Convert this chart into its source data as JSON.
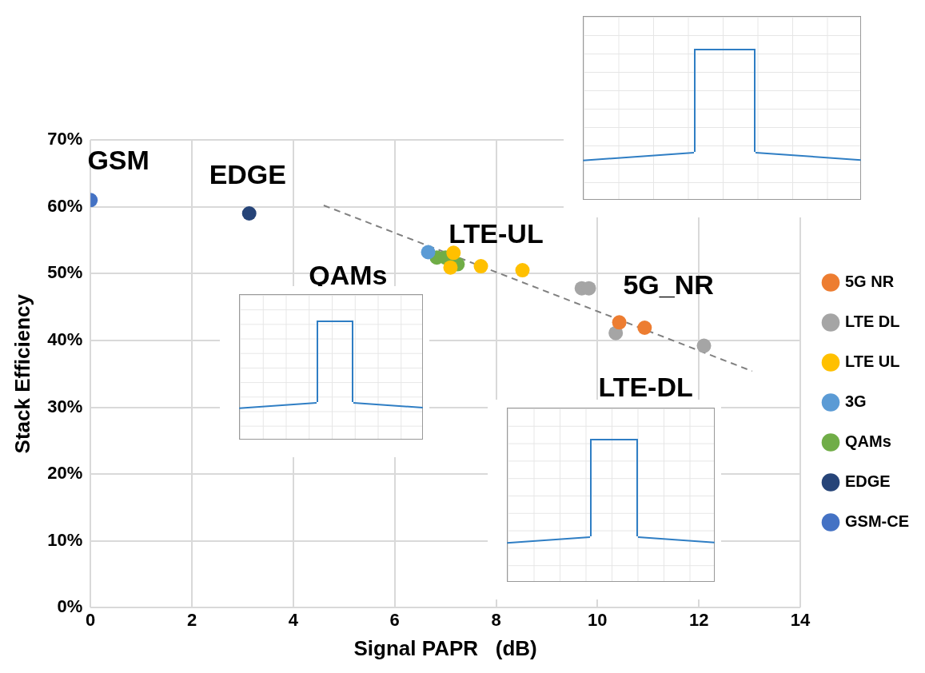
{
  "chart_data": {
    "type": "scatter",
    "xlabel": "Signal PAPR   (dB)",
    "ylabel": "Stack Efficiency",
    "xlim": [
      0,
      14
    ],
    "xticks": [
      0,
      2,
      4,
      6,
      8,
      10,
      12,
      14
    ],
    "ylim": [
      0,
      70
    ],
    "yticks": [
      {
        "value": 0,
        "label": "0%"
      },
      {
        "value": 10,
        "label": "10%"
      },
      {
        "value": 20,
        "label": "20%"
      },
      {
        "value": 30,
        "label": "30%"
      },
      {
        "value": 40,
        "label": "40%"
      },
      {
        "value": 50,
        "label": "50%"
      },
      {
        "value": 60,
        "label": "60%"
      },
      {
        "value": 70,
        "label": "70%"
      }
    ],
    "grid": true,
    "legend": "right",
    "marker": "circle",
    "series": [
      {
        "name": "5G NR",
        "color": "#ed7d31",
        "x": [
          10.43,
          10.93
        ],
        "values": [
          42.7,
          41.9
        ]
      },
      {
        "name": "LTE DL",
        "color": "#a5a5a5",
        "x": [
          9.69,
          9.83,
          10.36,
          12.1
        ],
        "values": [
          47.8,
          47.8,
          41.1,
          39.2
        ]
      },
      {
        "name": "LTE UL",
        "color": "#ffc000",
        "x": [
          7.16,
          7.1,
          7.7,
          8.52
        ],
        "values": [
          53.1,
          50.9,
          51.1,
          50.5
        ]
      },
      {
        "name": "3G",
        "color": "#5b9bd5",
        "x": [
          6.66
        ],
        "values": [
          53.2
        ]
      },
      {
        "name": "QAMs",
        "color": "#70ad47",
        "x": [
          6.83,
          7.0,
          7.24
        ],
        "values": [
          52.4,
          52.4,
          51.4
        ]
      },
      {
        "name": "EDGE",
        "color": "#264478",
        "x": [
          3.13
        ],
        "values": [
          59.0
        ]
      },
      {
        "name": "GSM-CE",
        "color": "#4472c4",
        "x": [
          0.0
        ],
        "values": [
          61.0
        ]
      },
      {
        "type": "line",
        "color": "#808080",
        "line_style": "dashed",
        "marker": "none",
        "x": [
          4.6,
          13.05
        ],
        "values": [
          60.2,
          35.4
        ]
      }
    ],
    "annotations": [
      "GSM",
      "EDGE",
      "QAMs",
      "LTE-UL",
      "5G_NR",
      "LTE-DL"
    ]
  }
}
